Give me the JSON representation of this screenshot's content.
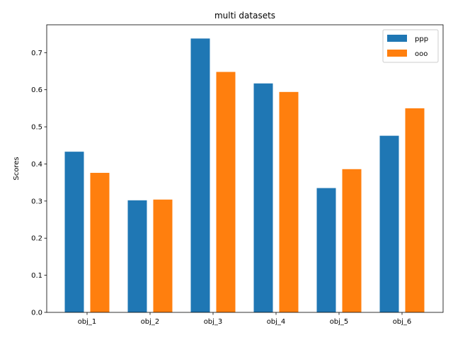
{
  "chart_data": {
    "type": "bar",
    "title": "multi datasets",
    "xlabel": "",
    "ylabel": "Scores",
    "categories": [
      "obj_1",
      "obj_2",
      "obj_3",
      "obj_4",
      "obj_5",
      "obj_6"
    ],
    "series": [
      {
        "name": "ppp",
        "color": "#1f77b4",
        "values": [
          0.433,
          0.302,
          0.738,
          0.617,
          0.335,
          0.476
        ]
      },
      {
        "name": "ooo",
        "color": "#ff7f0e",
        "values": [
          0.376,
          0.304,
          0.648,
          0.594,
          0.386,
          0.55
        ]
      }
    ],
    "ylim": [
      0,
      0.775
    ],
    "yticks": [
      "0.0",
      "0.1",
      "0.2",
      "0.3",
      "0.4",
      "0.5",
      "0.6",
      "0.7"
    ],
    "legend_position": "top-right",
    "grid": false
  }
}
